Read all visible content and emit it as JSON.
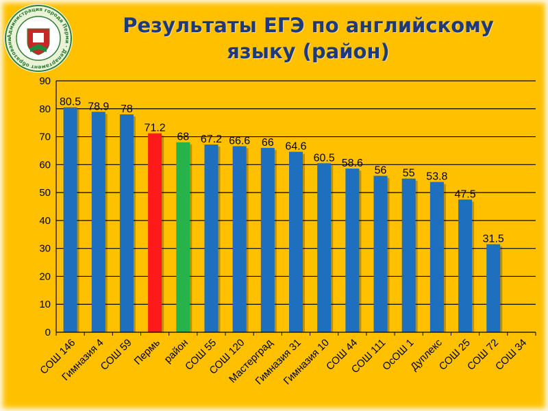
{
  "slide": {
    "title_line1": "Результаты ЕГЭ по английскому",
    "title_line2": "языку (район)"
  },
  "logo": {
    "ring_text": "Администрация города Перми · Департамент образования"
  },
  "colors": {
    "background": "#ffc000",
    "default_bar": "#1f6fbf",
    "highlight_perm": "#ff1a1a",
    "highlight_district": "#27b34a",
    "title": "#1f3a7a"
  },
  "chart_data": {
    "type": "bar",
    "title": "",
    "xlabel": "",
    "ylabel": "",
    "ylim": [
      0,
      90
    ],
    "yticks": [
      0,
      10,
      20,
      30,
      40,
      50,
      60,
      70,
      80,
      90
    ],
    "grid": true,
    "legend": "none",
    "categories": [
      "СОШ 146",
      "Гимназия 4",
      "СОШ 59",
      "Пермь",
      "район",
      "СОШ 55",
      "СОШ 120",
      "Мастерград",
      "Гимназия 31",
      "Гимназия 10",
      "СОШ 44",
      "СОШ 111",
      "ОсОШ 1",
      "Дуплекс",
      "СОШ 25",
      "СОШ 72",
      "СОШ 34"
    ],
    "values": [
      80.5,
      78.9,
      78,
      71.2,
      68,
      67.2,
      66.6,
      66,
      64.6,
      60.5,
      58.6,
      56,
      55,
      53.8,
      47.5,
      31.5,
      null
    ],
    "labels": [
      "80.5",
      "78.9",
      "78",
      "71.2",
      "68",
      "67.2",
      "66.6",
      "66",
      "64.6",
      "60.5",
      "58.6",
      "56",
      "55",
      "53.8",
      "47.5",
      "31.5",
      ""
    ],
    "bar_colors": [
      "#1f6fbf",
      "#1f6fbf",
      "#1f6fbf",
      "#ff1a1a",
      "#27b34a",
      "#1f6fbf",
      "#1f6fbf",
      "#1f6fbf",
      "#1f6fbf",
      "#1f6fbf",
      "#1f6fbf",
      "#1f6fbf",
      "#1f6fbf",
      "#1f6fbf",
      "#1f6fbf",
      "#1f6fbf",
      "#1f6fbf"
    ]
  }
}
